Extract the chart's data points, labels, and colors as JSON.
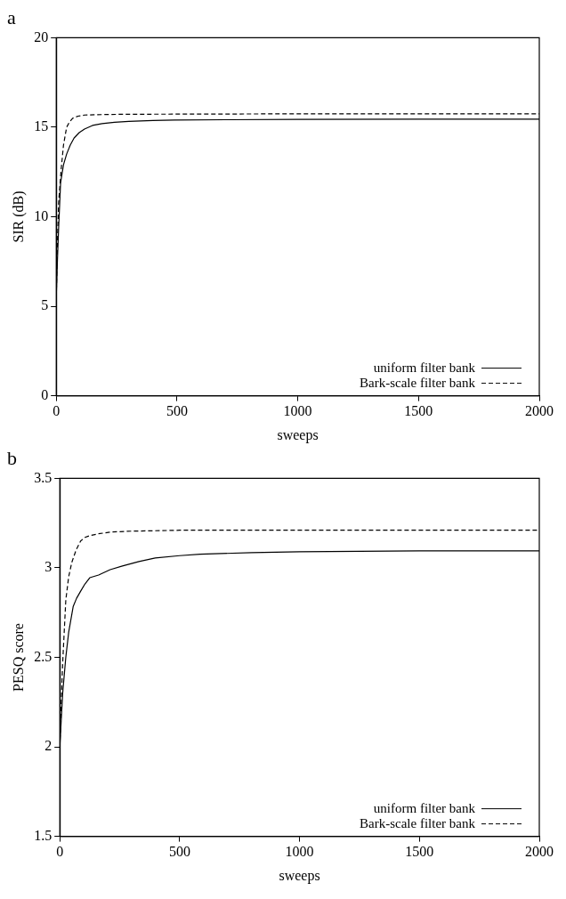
{
  "chart_data": [
    {
      "type": "line",
      "title": "a",
      "xlabel": "sweeps",
      "ylabel": "SIR (dB)",
      "xlim": [
        0,
        2000
      ],
      "xticks": [
        0,
        500,
        1000,
        1500,
        2000
      ],
      "ylim": [
        0,
        20
      ],
      "yticks": [
        0,
        5,
        10,
        15,
        20
      ],
      "legend": "bottom right",
      "grid": false,
      "marker": "none",
      "series": [
        {
          "name": "uniform filter bank",
          "color": "#000000",
          "line_style": "solid",
          "x": [
            0,
            5,
            10,
            18,
            30,
            43,
            58,
            74,
            95,
            117,
            150,
            190,
            241,
            300,
            400,
            488,
            700,
            1000,
            1500,
            2000
          ],
          "values": [
            5.5,
            7.6,
            9.4,
            11.9,
            12.9,
            13.5,
            14.0,
            14.4,
            14.7,
            14.9,
            15.1,
            15.2,
            15.28,
            15.33,
            15.38,
            15.4,
            15.42,
            15.44,
            15.45,
            15.45
          ]
        },
        {
          "name": "Bark-scale filter bank",
          "color": "#000000",
          "line_style": "dashed",
          "x": [
            0,
            5,
            10,
            20,
            30,
            43,
            55,
            68,
            90,
            117,
            160,
            250,
            400,
            700,
            1000,
            1500,
            2000
          ],
          "values": [
            5.5,
            8.6,
            10.8,
            12.6,
            14.0,
            15.0,
            15.3,
            15.5,
            15.62,
            15.68,
            15.7,
            15.72,
            15.73,
            15.74,
            15.75,
            15.75,
            15.75
          ]
        }
      ]
    },
    {
      "type": "line",
      "title": "b",
      "xlabel": "sweeps",
      "ylabel": "PESQ score",
      "xlim": [
        0,
        2000
      ],
      "xticks": [
        0,
        500,
        1000,
        1500,
        2000
      ],
      "ylim": [
        1.5,
        3.5
      ],
      "yticks": [
        1.5,
        2,
        2.5,
        3,
        3.5
      ],
      "legend": "bottom right",
      "grid": false,
      "marker": "none",
      "series": [
        {
          "name": "uniform filter bank",
          "color": "#000000",
          "line_style": "solid",
          "x": [
            0,
            12,
            25,
            37,
            56,
            70,
            87,
            105,
            125,
            162,
            210,
            261,
            330,
            398,
            500,
            585,
            800,
            1000,
            1500,
            2000
          ],
          "values": [
            2.0,
            2.3,
            2.5,
            2.64,
            2.785,
            2.83,
            2.87,
            2.91,
            2.945,
            2.96,
            2.99,
            3.01,
            3.035,
            3.055,
            3.068,
            3.076,
            3.085,
            3.09,
            3.095,
            3.095
          ]
        },
        {
          "name": "Bark-scale filter bank",
          "color": "#000000",
          "line_style": "dashed",
          "x": [
            0,
            6,
            12,
            25,
            37,
            50,
            68,
            87,
            105,
            125,
            160,
            211,
            300,
            500,
            1000,
            1500,
            2000
          ],
          "values": [
            2.0,
            2.25,
            2.47,
            2.82,
            2.95,
            3.03,
            3.1,
            3.15,
            3.17,
            3.18,
            3.19,
            3.2,
            3.205,
            3.21,
            3.21,
            3.21,
            3.21
          ]
        }
      ]
    }
  ]
}
